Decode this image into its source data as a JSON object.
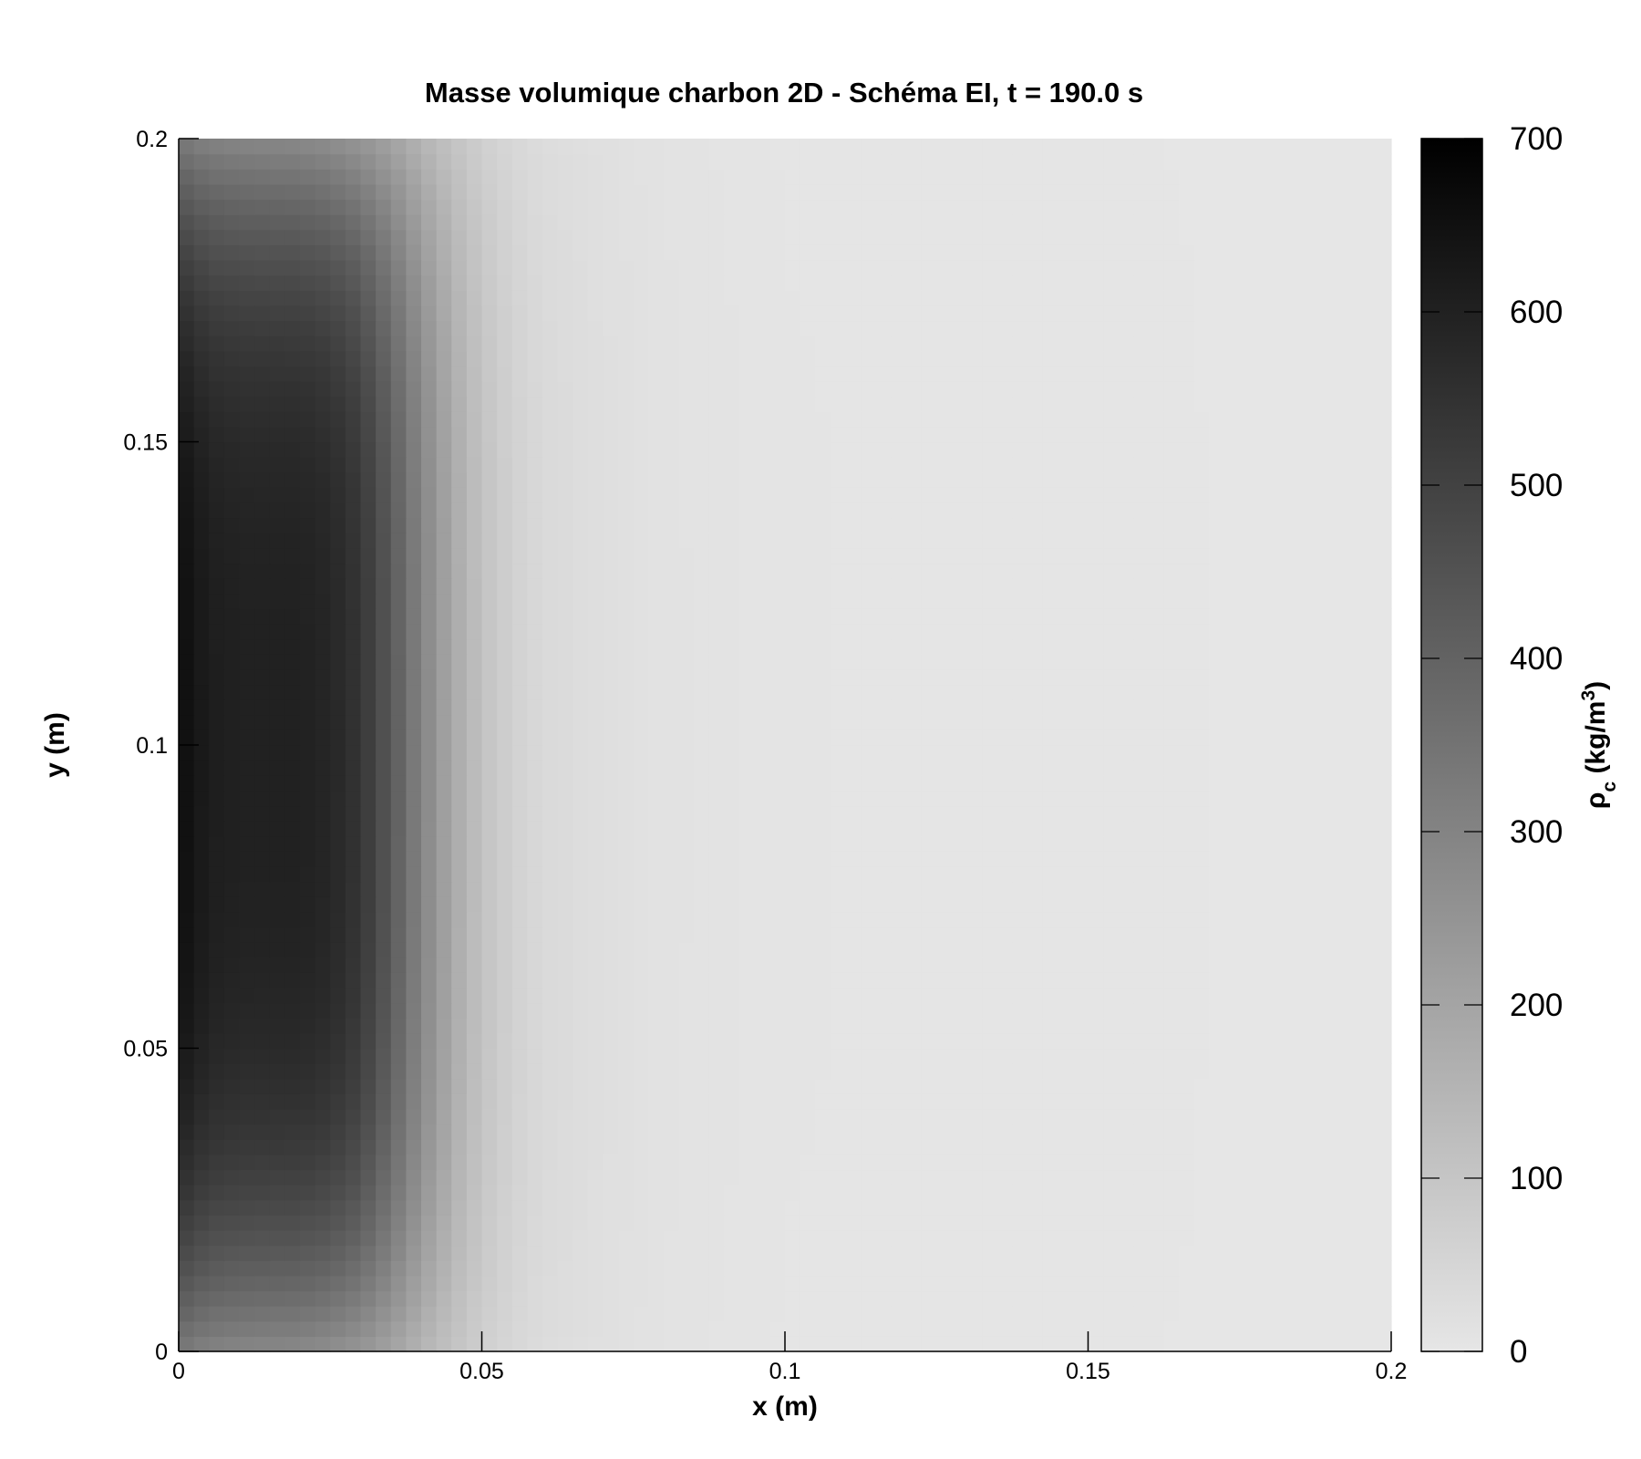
{
  "chart_data": {
    "type": "heatmap",
    "title": "Masse volumique charbon 2D - Schéma EI, t = 190.0 s",
    "xlabel": "x (m)",
    "ylabel": "y (m)",
    "colorbar_label": {
      "base": "ρ",
      "subscript": "c",
      "before_sup": " (kg/m",
      "sup": "3",
      "after_sup": ")"
    },
    "xlim": [
      0,
      0.2
    ],
    "ylim": [
      0,
      0.2
    ],
    "xticks": [
      0,
      0.05,
      0.1,
      0.15,
      0.2
    ],
    "xtick_labels": [
      "0",
      "0.05",
      "0.1",
      "0.15",
      "0.2"
    ],
    "yticks": [
      0,
      0.05,
      0.1,
      0.15,
      0.2
    ],
    "ytick_labels": [
      "0",
      "0.05",
      "0.1",
      "0.15",
      "0.2"
    ],
    "clim": [
      0,
      700
    ],
    "colorbar_ticks": [
      0,
      100,
      200,
      300,
      400,
      500,
      600,
      700
    ],
    "colorbar_tick_labels": [
      "0",
      "100",
      "200",
      "300",
      "400",
      "500",
      "600",
      "700"
    ],
    "colormap": {
      "low": "#e6e6e6",
      "high": "#000000"
    },
    "grid": false,
    "field": {
      "description_of_values": "approximate ρc (kg/m3) along x at y = 0.1 m and at y = 0 m",
      "x": [
        0,
        0.005,
        0.01,
        0.02,
        0.025,
        0.03,
        0.035,
        0.04,
        0.045,
        0.05,
        0.055,
        0.06,
        0.07,
        0.08,
        0.1,
        0.2
      ],
      "core_profile": [
        660,
        610,
        600,
        600,
        585,
        540,
        430,
        300,
        190,
        110,
        65,
        40,
        22,
        12,
        5,
        0
      ],
      "edge_profile": [
        330,
        300,
        290,
        280,
        265,
        240,
        200,
        150,
        105,
        70,
        45,
        30,
        18,
        10,
        4,
        0
      ]
    }
  }
}
